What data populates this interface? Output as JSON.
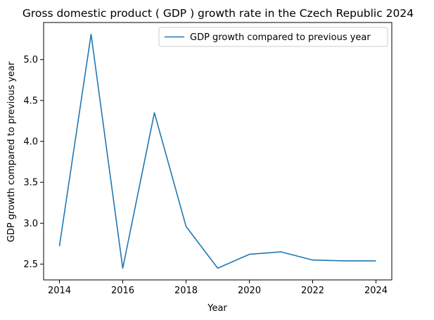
{
  "chart_data": {
    "type": "line",
    "title": "Gross domestic product ( GDP ) growth rate in the Czech Republic 2024",
    "xlabel": "Year",
    "ylabel": "GDP growth compared to previous year",
    "x": [
      2014,
      2015,
      2016,
      2017,
      2018,
      2019,
      2020,
      2021,
      2022,
      2023,
      2024
    ],
    "series": [
      {
        "name": "GDP growth compared to previous year",
        "color": "#1f77b4",
        "values": [
          2.72,
          5.31,
          2.45,
          4.35,
          2.96,
          2.45,
          2.62,
          2.65,
          2.55,
          2.54,
          2.54
        ]
      }
    ],
    "xlim": [
      2013.5,
      2024.5
    ],
    "ylim": [
      2.307,
      5.453
    ],
    "xticks": [
      "2014",
      "2016",
      "2018",
      "2020",
      "2022",
      "2024"
    ],
    "yticks": [
      "2.5",
      "3.0",
      "3.5",
      "4.0",
      "4.5",
      "5.0"
    ],
    "grid": false,
    "legend": "top-right"
  }
}
